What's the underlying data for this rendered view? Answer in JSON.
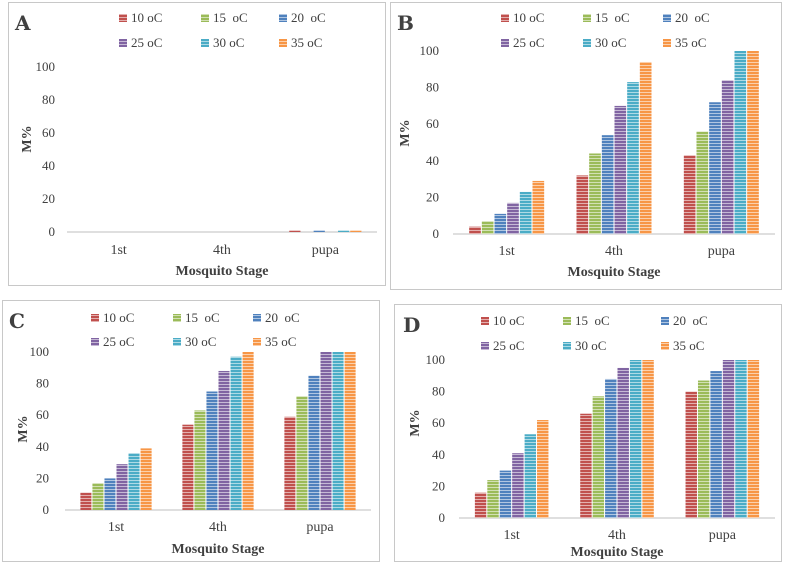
{
  "colors": {
    "10 oC": "#c0504d",
    "15  oC": "#9bbb59",
    "20  oC": "#4f81bd",
    "25 oC": "#8064a2",
    "30 oC": "#4bacc6",
    "35 oC": "#f79646"
  },
  "chart_data": [
    {
      "panel": "A",
      "type": "bar",
      "categories": [
        "1st",
        "4th",
        "pupa"
      ],
      "series": [
        {
          "name": "10 oC",
          "values": [
            0,
            0,
            1
          ]
        },
        {
          "name": "15  oC",
          "values": [
            0,
            0,
            0
          ]
        },
        {
          "name": "20  oC",
          "values": [
            0,
            0,
            1
          ]
        },
        {
          "name": "25 oC",
          "values": [
            0,
            0,
            0
          ]
        },
        {
          "name": "30 oC",
          "values": [
            0,
            0,
            1
          ]
        },
        {
          "name": "35 oC",
          "values": [
            0,
            0,
            1
          ]
        }
      ],
      "xlabel": "Mosquito Stage",
      "ylabel": "M%",
      "yticks": [
        "0",
        "20",
        "40",
        "60",
        "80",
        "100"
      ],
      "ylim": [
        0,
        100
      ],
      "legend": "top"
    },
    {
      "panel": "B",
      "type": "bar",
      "categories": [
        "1st",
        "4th",
        "pupa"
      ],
      "series": [
        {
          "name": "10 oC",
          "values": [
            4,
            32,
            43
          ]
        },
        {
          "name": "15  oC",
          "values": [
            7,
            44,
            56
          ]
        },
        {
          "name": "20  oC",
          "values": [
            11,
            54,
            72
          ]
        },
        {
          "name": "25 oC",
          "values": [
            17,
            70,
            84
          ]
        },
        {
          "name": "30 oC",
          "values": [
            23,
            83,
            100
          ]
        },
        {
          "name": "35 oC",
          "values": [
            29,
            94,
            100
          ]
        }
      ],
      "xlabel": "Mosquito Stage",
      "ylabel": "M%",
      "yticks": [
        "0",
        "20",
        "40",
        "60",
        "80",
        "100"
      ],
      "ylim": [
        0,
        100
      ],
      "legend": "top"
    },
    {
      "panel": "C",
      "type": "bar",
      "categories": [
        "1st",
        "4th",
        "pupa"
      ],
      "series": [
        {
          "name": "10 oC",
          "values": [
            11,
            54,
            59
          ]
        },
        {
          "name": "15  oC",
          "values": [
            17,
            63,
            72
          ]
        },
        {
          "name": "20  oC",
          "values": [
            20,
            75,
            85
          ]
        },
        {
          "name": "25 oC",
          "values": [
            29,
            88,
            100
          ]
        },
        {
          "name": "30 oC",
          "values": [
            36,
            97,
            100
          ]
        },
        {
          "name": "35 oC",
          "values": [
            39,
            100,
            100
          ]
        }
      ],
      "xlabel": "Mosquito Stage",
      "ylabel": "M%",
      "yticks": [
        "0",
        "20",
        "40",
        "60",
        "80",
        "100"
      ],
      "ylim": [
        0,
        100
      ],
      "legend": "top"
    },
    {
      "panel": "D",
      "type": "bar",
      "categories": [
        "1st",
        "4th",
        "pupa"
      ],
      "series": [
        {
          "name": "10 oC",
          "values": [
            16,
            66,
            80
          ]
        },
        {
          "name": "15  oC",
          "values": [
            24,
            77,
            87
          ]
        },
        {
          "name": "20  oC",
          "values": [
            30,
            88,
            93
          ]
        },
        {
          "name": "25 oC",
          "values": [
            41,
            95,
            100
          ]
        },
        {
          "name": "30 oC",
          "values": [
            53,
            100,
            100
          ]
        },
        {
          "name": "35 oC",
          "values": [
            62,
            100,
            100
          ]
        }
      ],
      "xlabel": "Mosquito Stage",
      "ylabel": "M%",
      "yticks": [
        "0",
        "20",
        "40",
        "60",
        "80",
        "100"
      ],
      "ylim": [
        0,
        100
      ],
      "legend": "top"
    }
  ]
}
